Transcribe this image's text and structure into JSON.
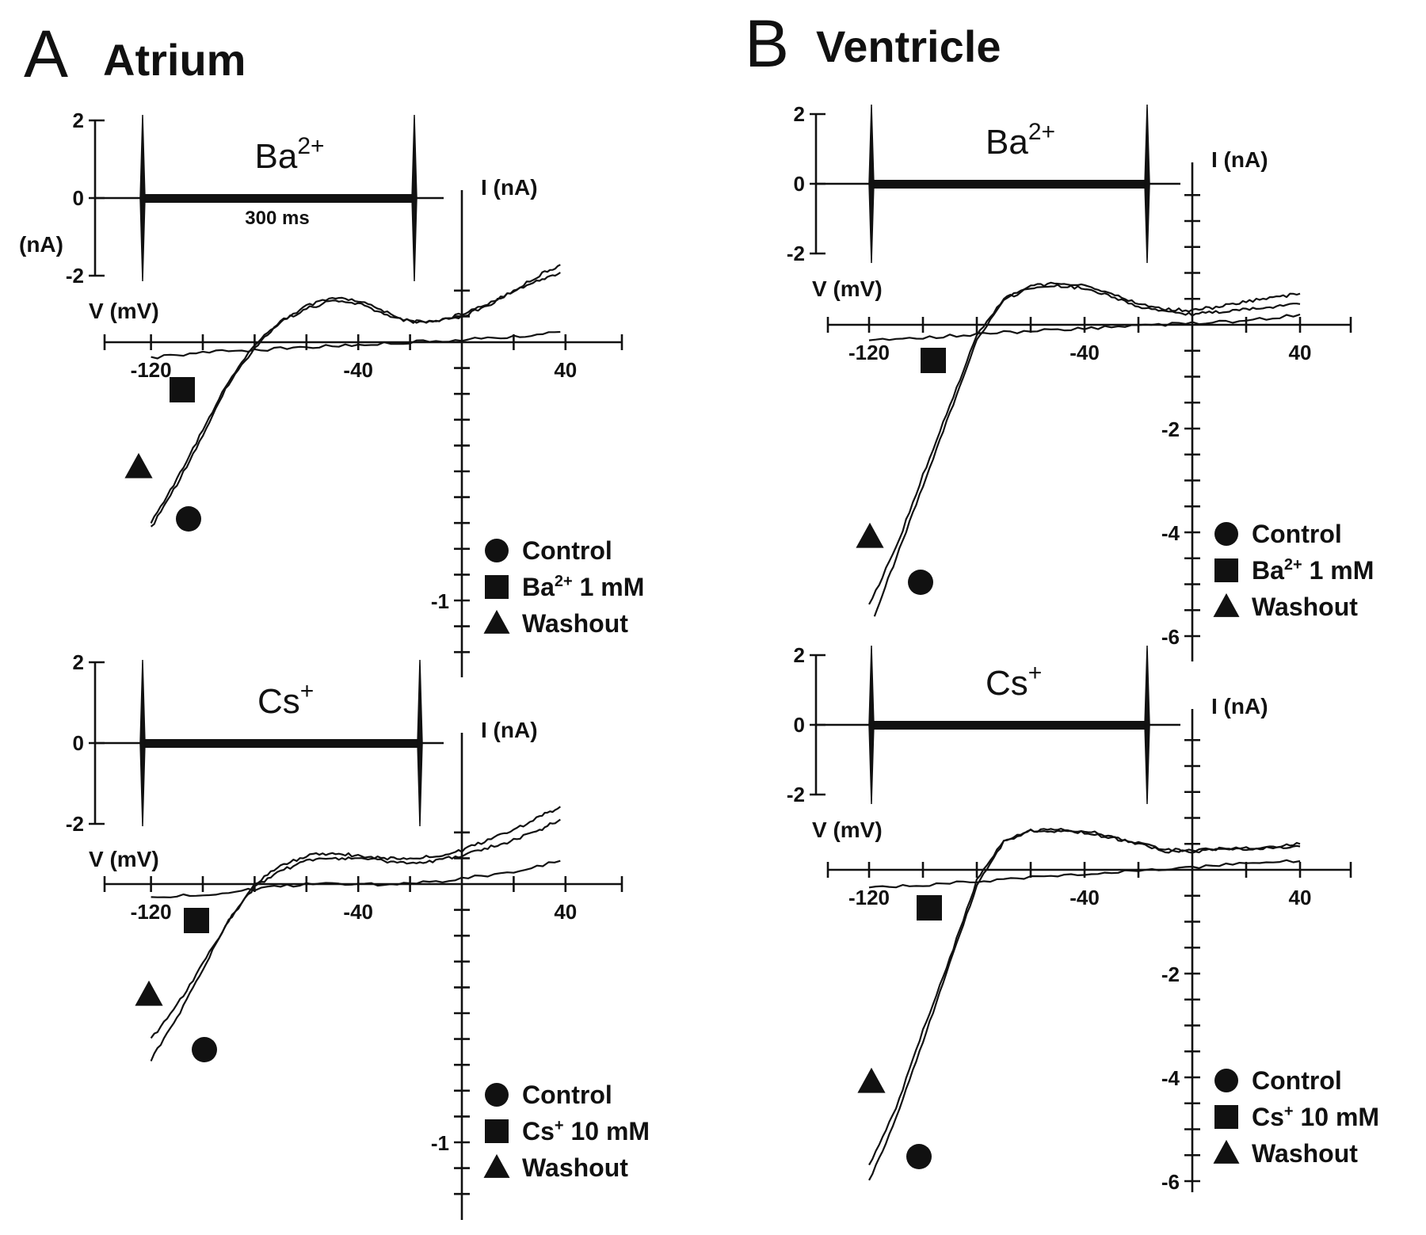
{
  "panels": [
    {
      "letter": "A",
      "title": "Atrium",
      "sub": [
        {
          "ion_base": "Ba",
          "ion_sup": "2+",
          "duration_label": "300 ms",
          "inset_unit_label": "(nA)",
          "inset_ticks": [
            "2",
            "0",
            "-2"
          ],
          "iv_axis_y_label": "I (nA)",
          "iv_axis_x_label": "V (mV)",
          "iv_x_tick_labels": [
            "-120",
            "-40",
            "40"
          ],
          "iv_y_tick_labels": [
            "-1"
          ],
          "legend": [
            {
              "marker": "circle",
              "base": "Control",
              "sup": "",
              "rest": ""
            },
            {
              "marker": "square",
              "base": "Ba",
              "sup": "2+",
              "rest": " 1 mM"
            },
            {
              "marker": "triangle",
              "base": "Washout",
              "sup": "",
              "rest": ""
            }
          ]
        },
        {
          "ion_base": "Cs",
          "ion_sup": "+",
          "duration_label": "",
          "inset_unit_label": "",
          "inset_ticks": [
            "2",
            "0",
            "-2"
          ],
          "iv_axis_y_label": "I (nA)",
          "iv_axis_x_label": "V (mV)",
          "iv_x_tick_labels": [
            "-120",
            "-40",
            "40"
          ],
          "iv_y_tick_labels": [
            "-1"
          ],
          "legend": [
            {
              "marker": "circle",
              "base": "Control",
              "sup": "",
              "rest": ""
            },
            {
              "marker": "square",
              "base": "Cs",
              "sup": "+",
              "rest": " 10 mM"
            },
            {
              "marker": "triangle",
              "base": "Washout",
              "sup": "",
              "rest": ""
            }
          ]
        }
      ]
    },
    {
      "letter": "B",
      "title": "Ventricle",
      "sub": [
        {
          "ion_base": "Ba",
          "ion_sup": "2+",
          "duration_label": "",
          "inset_unit_label": "",
          "inset_ticks": [
            "2",
            "0",
            "-2"
          ],
          "iv_axis_y_label": "I (nA)",
          "iv_axis_x_label": "V (mV)",
          "iv_x_tick_labels": [
            "-120",
            "-40",
            "40"
          ],
          "iv_y_tick_labels": [
            "-2",
            "-4",
            "-6"
          ],
          "legend": [
            {
              "marker": "circle",
              "base": "Control",
              "sup": "",
              "rest": ""
            },
            {
              "marker": "square",
              "base": "Ba",
              "sup": "2+",
              "rest": " 1 mM"
            },
            {
              "marker": "triangle",
              "base": "Washout",
              "sup": "",
              "rest": ""
            }
          ]
        },
        {
          "ion_base": "Cs",
          "ion_sup": "+",
          "duration_label": "",
          "inset_unit_label": "",
          "inset_ticks": [
            "2",
            "0",
            "-2"
          ],
          "iv_axis_y_label": "I (nA)",
          "iv_axis_x_label": "V (mV)",
          "iv_x_tick_labels": [
            "-120",
            "-40",
            "40"
          ],
          "iv_y_tick_labels": [
            "-2",
            "-4",
            "-6"
          ],
          "legend": [
            {
              "marker": "circle",
              "base": "Control",
              "sup": "",
              "rest": ""
            },
            {
              "marker": "square",
              "base": "Cs",
              "sup": "+",
              "rest": " 10 mM"
            },
            {
              "marker": "triangle",
              "base": "Washout",
              "sup": "",
              "rest": ""
            }
          ]
        }
      ]
    }
  ],
  "chart_data": [
    {
      "type": "line",
      "panel": "A Atrium, Ba2+",
      "xlabel": "V (mV)",
      "ylabel": "I (nA)",
      "xlim": [
        -140,
        60
      ],
      "ylim": [
        -1.3,
        0.35
      ],
      "series": [
        {
          "name": "Control",
          "marker": "circle",
          "x": [
            -120,
            -110,
            -100,
            -90,
            -80,
            -70,
            -60,
            -50,
            -40,
            -30,
            -20,
            -10,
            0,
            10,
            20,
            30,
            38
          ],
          "y": [
            -0.72,
            -0.55,
            -0.36,
            -0.16,
            -0.02,
            0.08,
            0.14,
            0.17,
            0.16,
            0.12,
            0.08,
            0.08,
            0.1,
            0.14,
            0.2,
            0.26,
            0.3
          ]
        },
        {
          "name": "Ba2+ 1 mM",
          "marker": "square",
          "x": [
            -120,
            -100,
            -80,
            -60,
            -40,
            -20,
            0,
            20,
            38
          ],
          "y": [
            -0.06,
            -0.04,
            -0.03,
            -0.02,
            -0.01,
            0.0,
            0.01,
            0.02,
            0.04
          ]
        },
        {
          "name": "Washout",
          "marker": "triangle",
          "x": [
            -120,
            -110,
            -100,
            -90,
            -80,
            -70,
            -60,
            -50,
            -40,
            -30,
            -20,
            -10,
            0,
            10,
            20,
            30,
            38
          ],
          "y": [
            -0.7,
            -0.53,
            -0.34,
            -0.15,
            -0.01,
            0.08,
            0.13,
            0.16,
            0.15,
            0.11,
            0.08,
            0.08,
            0.11,
            0.15,
            0.2,
            0.24,
            0.27
          ]
        }
      ]
    },
    {
      "type": "line",
      "panel": "A Atrium, Cs+",
      "xlabel": "V (mV)",
      "ylabel": "I (nA)",
      "xlim": [
        -140,
        60
      ],
      "ylim": [
        -1.3,
        0.35
      ],
      "series": [
        {
          "name": "Control",
          "marker": "circle",
          "x": [
            -120,
            -110,
            -100,
            -90,
            -80,
            -70,
            -60,
            -50,
            -40,
            -30,
            -20,
            -10,
            0,
            10,
            20,
            30,
            38
          ],
          "y": [
            -0.68,
            -0.52,
            -0.33,
            -0.14,
            0.0,
            0.07,
            0.11,
            0.12,
            0.11,
            0.1,
            0.1,
            0.11,
            0.13,
            0.17,
            0.21,
            0.26,
            0.3
          ]
        },
        {
          "name": "Cs+ 10 mM",
          "marker": "square",
          "x": [
            -120,
            -100,
            -80,
            -60,
            -40,
            -20,
            0,
            20,
            38
          ],
          "y": [
            -0.05,
            -0.04,
            -0.02,
            0.0,
            0.0,
            0.0,
            0.02,
            0.05,
            0.09
          ]
        },
        {
          "name": "Washout",
          "marker": "triangle",
          "x": [
            -120,
            -110,
            -100,
            -90,
            -80,
            -70,
            -60,
            -50,
            -40,
            -30,
            -20,
            -10,
            0,
            10,
            20,
            30,
            38
          ],
          "y": [
            -0.6,
            -0.47,
            -0.31,
            -0.14,
            -0.01,
            0.05,
            0.09,
            0.1,
            0.1,
            0.09,
            0.08,
            0.09,
            0.11,
            0.14,
            0.17,
            0.21,
            0.25
          ]
        }
      ]
    },
    {
      "type": "line",
      "panel": "B Ventricle, Ba2+",
      "xlabel": "V (mV)",
      "ylabel": "I (nA)",
      "xlim": [
        -140,
        60
      ],
      "ylim": [
        -6.4,
        1.3
      ],
      "series": [
        {
          "name": "Control",
          "marker": "circle",
          "x": [
            -118,
            -110,
            -100,
            -90,
            -80,
            -70,
            -60,
            -50,
            -40,
            -30,
            -20,
            -10,
            0,
            10,
            20,
            30,
            40
          ],
          "y": [
            -5.6,
            -4.5,
            -3.1,
            -1.7,
            -0.3,
            0.5,
            0.75,
            0.8,
            0.75,
            0.6,
            0.4,
            0.3,
            0.28,
            0.35,
            0.45,
            0.52,
            0.6
          ]
        },
        {
          "name": "Ba2+ 1 mM",
          "marker": "square",
          "x": [
            -120,
            -100,
            -80,
            -60,
            -40,
            -20,
            0,
            20,
            40
          ],
          "y": [
            -0.3,
            -0.25,
            -0.18,
            -0.12,
            -0.07,
            -0.02,
            0.03,
            0.08,
            0.2
          ]
        },
        {
          "name": "Washout",
          "marker": "triangle",
          "x": [
            -120,
            -110,
            -100,
            -90,
            -80,
            -70,
            -60,
            -50,
            -40,
            -30,
            -20,
            -10,
            0,
            10,
            20,
            30,
            40
          ],
          "y": [
            -5.4,
            -4.3,
            -2.9,
            -1.55,
            -0.2,
            0.5,
            0.7,
            0.75,
            0.7,
            0.55,
            0.35,
            0.25,
            0.2,
            0.25,
            0.3,
            0.35,
            0.4
          ]
        }
      ]
    },
    {
      "type": "line",
      "panel": "B Ventricle, Cs+",
      "xlabel": "V (mV)",
      "ylabel": "I (nA)",
      "xlim": [
        -140,
        60
      ],
      "ylim": [
        -6.4,
        1.3
      ],
      "series": [
        {
          "name": "Control",
          "marker": "circle",
          "x": [
            -120,
            -110,
            -100,
            -90,
            -80,
            -70,
            -60,
            -50,
            -40,
            -30,
            -20,
            -10,
            0,
            10,
            20,
            30,
            40
          ],
          "y": [
            -6.0,
            -4.8,
            -3.3,
            -1.8,
            -0.3,
            0.55,
            0.75,
            0.75,
            0.72,
            0.62,
            0.5,
            0.35,
            0.35,
            0.4,
            0.4,
            0.42,
            0.45
          ]
        },
        {
          "name": "Cs+ 10 mM",
          "marker": "square",
          "x": [
            -120,
            -100,
            -80,
            -60,
            -40,
            -20,
            0,
            20,
            40
          ],
          "y": [
            -0.35,
            -0.3,
            -0.22,
            -0.15,
            -0.08,
            -0.02,
            0.05,
            0.12,
            0.17
          ]
        },
        {
          "name": "Washout",
          "marker": "triangle",
          "x": [
            -120,
            -110,
            -100,
            -90,
            -80,
            -70,
            -60,
            -50,
            -40,
            -30,
            -20,
            -10,
            0,
            10,
            20,
            30,
            40
          ],
          "y": [
            -5.7,
            -4.6,
            -3.1,
            -1.7,
            -0.2,
            0.55,
            0.75,
            0.78,
            0.75,
            0.65,
            0.52,
            0.38,
            0.38,
            0.4,
            0.42,
            0.45,
            0.5
          ]
        }
      ]
    }
  ]
}
